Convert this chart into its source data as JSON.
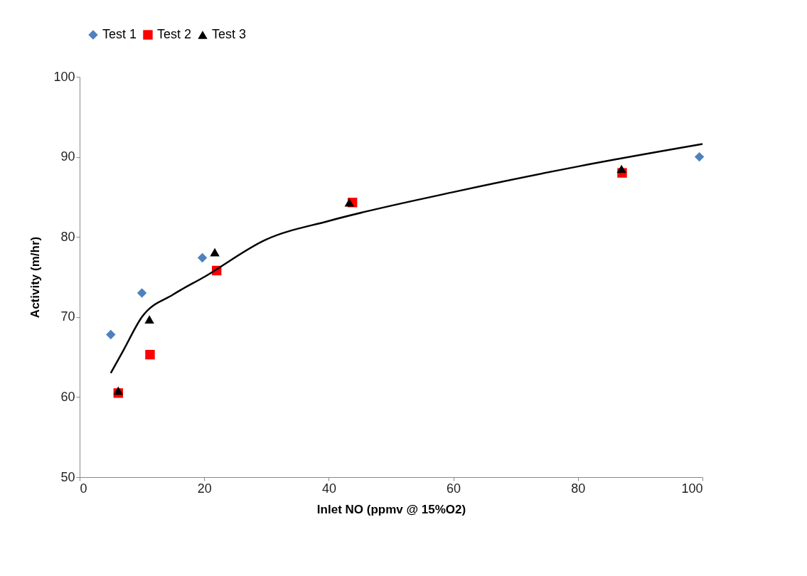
{
  "chart_data": {
    "type": "scatter",
    "xlabel": "Inlet NO (ppmv @ 15%O2)",
    "ylabel": "Activity (m/hr)",
    "xlim": [
      0,
      100
    ],
    "ylim": [
      50,
      100
    ],
    "xticks": [
      0,
      20,
      40,
      60,
      80,
      100
    ],
    "yticks": [
      50,
      60,
      70,
      80,
      90,
      100
    ],
    "grid": false,
    "legend": "top",
    "series": [
      {
        "name": "Test 1",
        "color": "#4f81bd",
        "marker": "diamond",
        "x": [
          5.0,
          10.0,
          19.7,
          99.5
        ],
        "values": [
          67.8,
          73.0,
          77.4,
          90.0
        ]
      },
      {
        "name": "Test 2",
        "color": "#ff0000",
        "marker": "square",
        "x": [
          6.2,
          11.3,
          22.0,
          43.8,
          87.1
        ],
        "values": [
          60.5,
          65.3,
          75.8,
          84.3,
          88.0
        ]
      },
      {
        "name": "Test 3",
        "color": "#000000",
        "marker": "triangle",
        "x": [
          6.2,
          11.2,
          21.7,
          43.3,
          87.0
        ],
        "values": [
          60.8,
          69.7,
          78.1,
          84.3,
          88.5
        ]
      },
      {
        "type": "line",
        "color": "#000000",
        "x": [
          5,
          7,
          10,
          15,
          20,
          30,
          40,
          60,
          80,
          100
        ],
        "values": [
          63.0,
          65.8,
          70.0,
          72.8,
          75.0,
          79.7,
          82.0,
          85.6,
          88.8,
          91.6
        ]
      }
    ]
  }
}
